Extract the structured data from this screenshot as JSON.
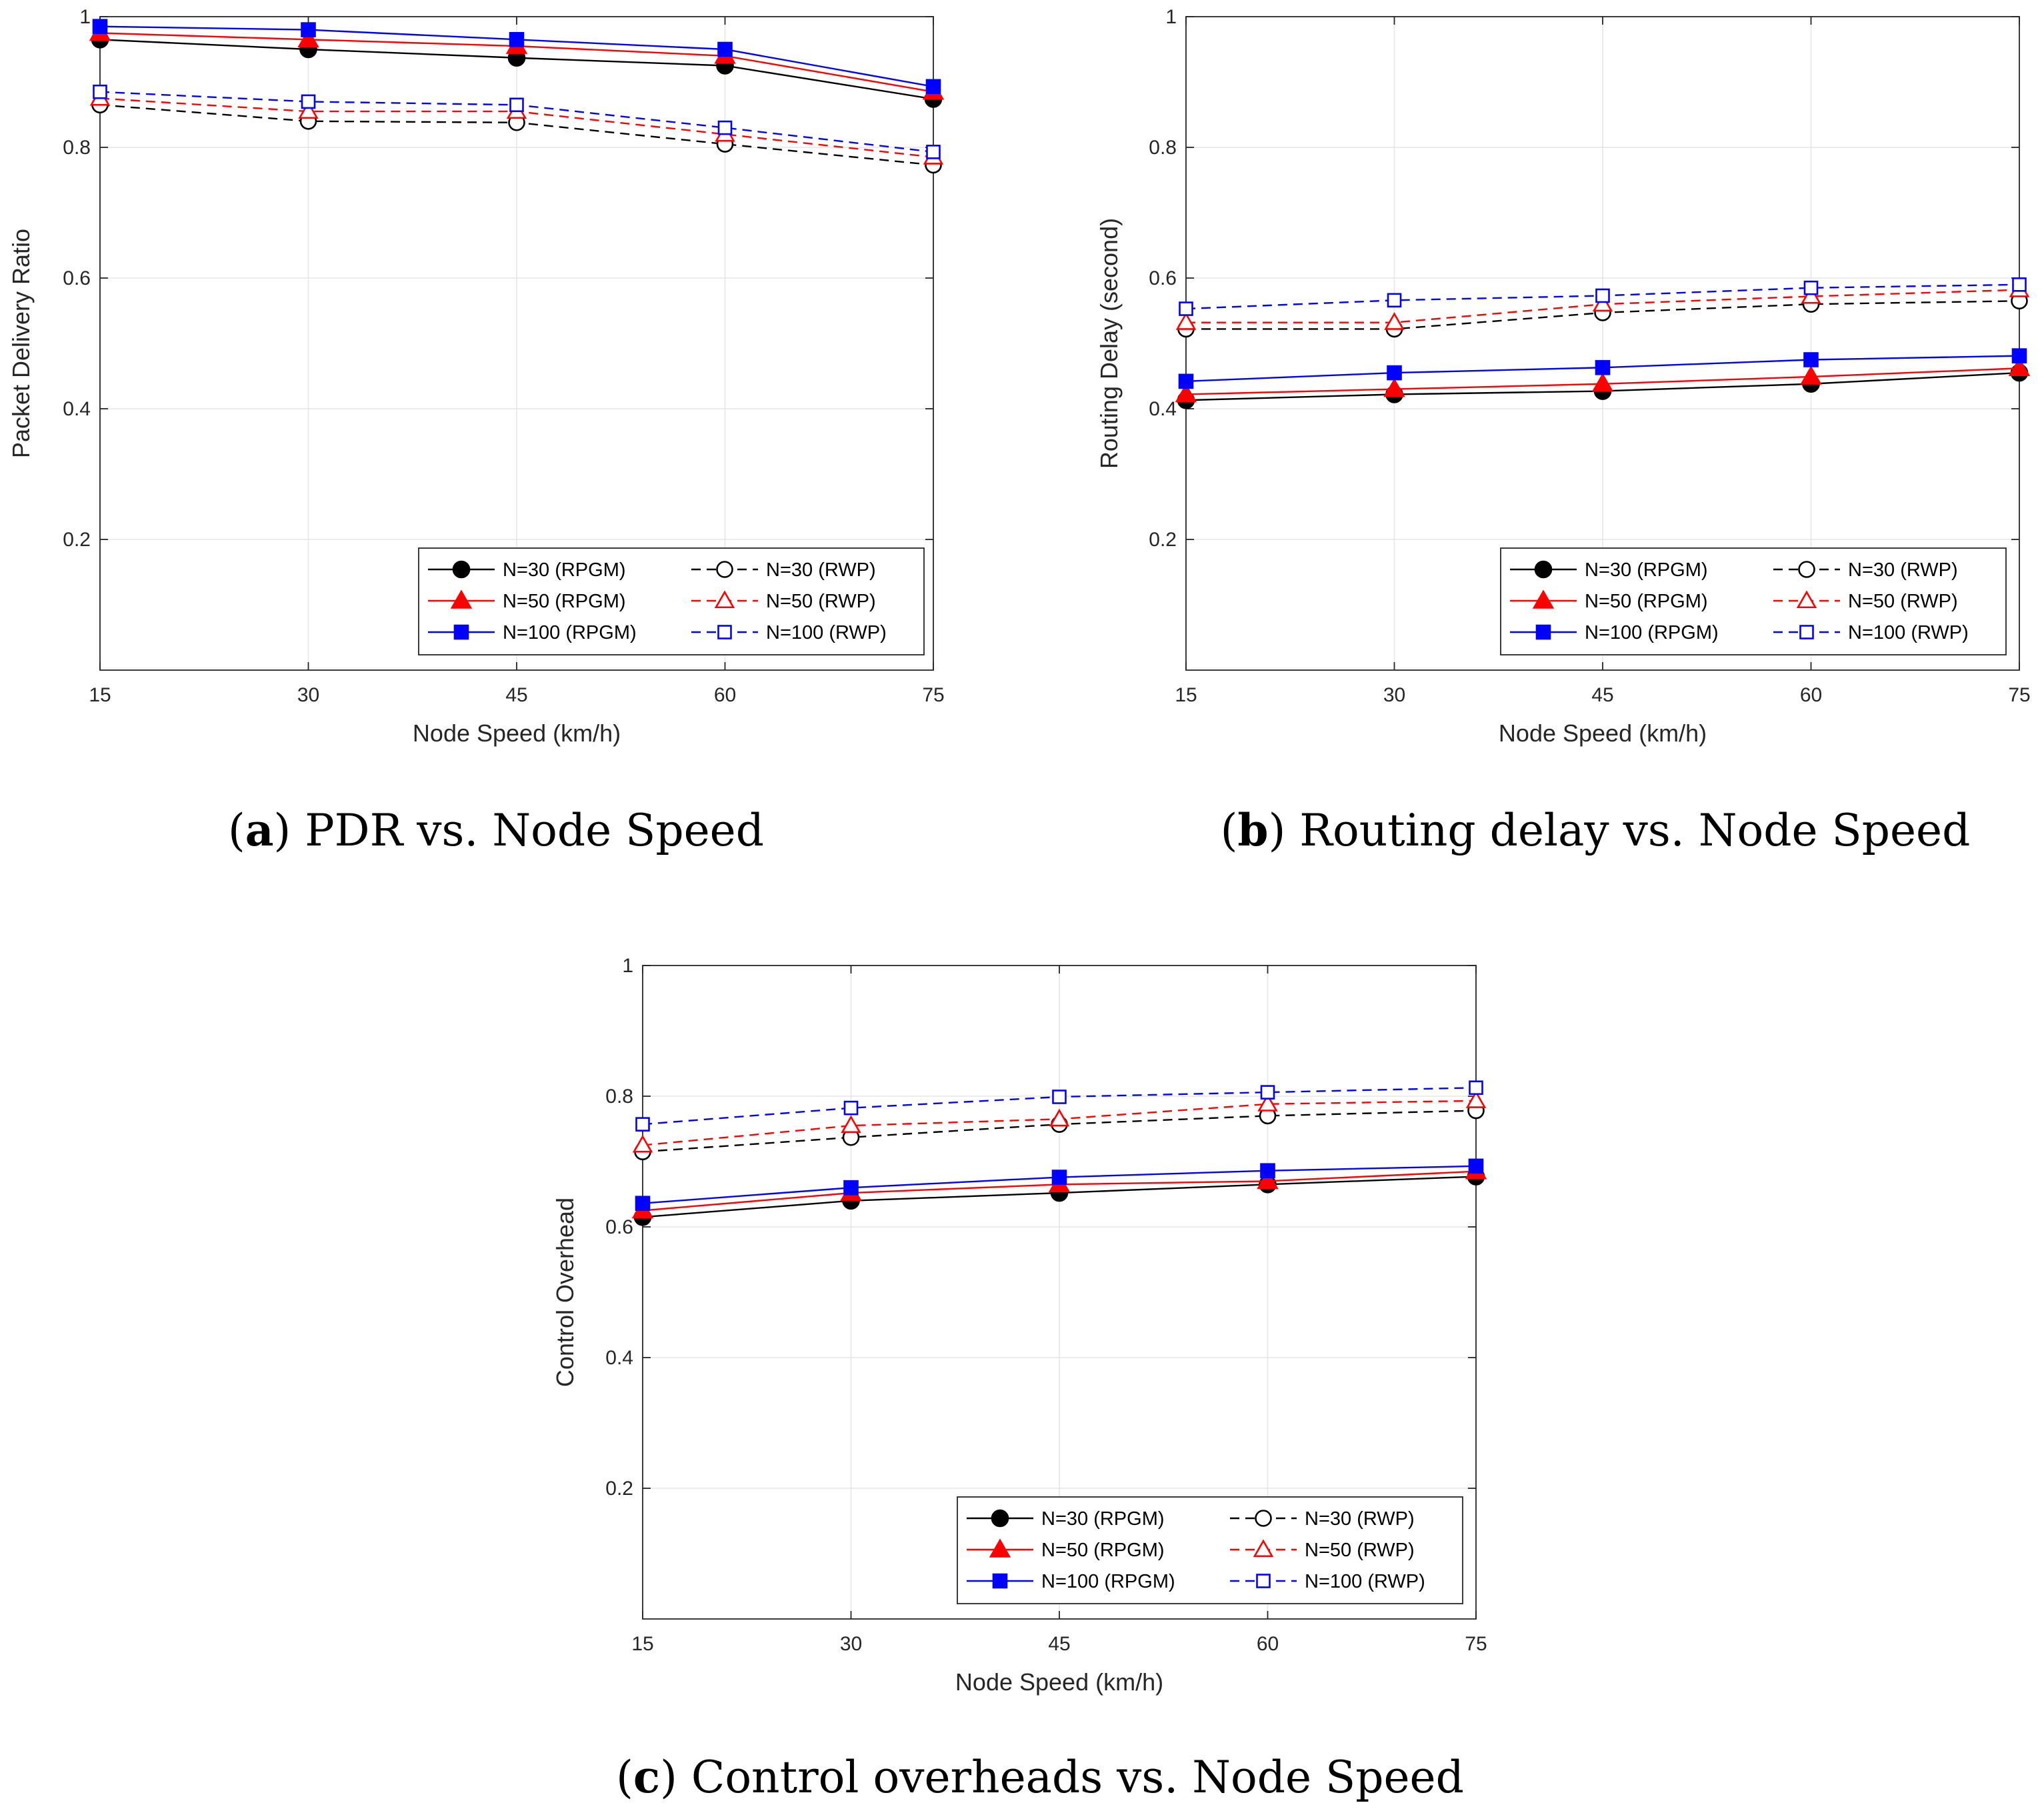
{
  "figure": {
    "colors": {
      "black": "#000000",
      "red": "#ff0000",
      "blue": "#0000ff",
      "grid": "#e6e6e6",
      "axis": "#262626"
    }
  },
  "chart_data": [
    {
      "id": "a",
      "type": "line",
      "caption_tag": "a",
      "caption_text": "PDR vs. Node Speed",
      "xlabel": "Node Speed (km/h)",
      "ylabel": "Packet Delivery Ratio",
      "x": [
        15,
        30,
        45,
        60,
        75
      ],
      "xlim": [
        15,
        75
      ],
      "ylim": [
        0,
        1
      ],
      "xticks": [
        15,
        30,
        45,
        60,
        75
      ],
      "yticks": [
        0.2,
        0.4,
        0.6,
        0.8,
        1
      ],
      "ytick_labels": [
        "0.2",
        "0.4",
        "0.6",
        "0.8",
        "1"
      ],
      "grid": true,
      "legend_position": "bottom-right",
      "series": [
        {
          "name": "N=30 (RPGM)",
          "color": "black",
          "marker": "filled-circle",
          "dashed": false,
          "values": [
            0.965,
            0.95,
            0.937,
            0.925,
            0.874
          ]
        },
        {
          "name": "N=50 (RPGM)",
          "color": "red",
          "marker": "filled-triangle",
          "dashed": false,
          "values": [
            0.975,
            0.965,
            0.955,
            0.94,
            0.885
          ]
        },
        {
          "name": "N=100 (RPGM)",
          "color": "blue",
          "marker": "filled-square",
          "dashed": false,
          "values": [
            0.985,
            0.98,
            0.965,
            0.95,
            0.893
          ]
        },
        {
          "name": "N=30 (RWP)",
          "color": "black",
          "marker": "open-circle",
          "dashed": true,
          "values": [
            0.865,
            0.84,
            0.838,
            0.805,
            0.773
          ]
        },
        {
          "name": "N=50 (RWP)",
          "color": "red",
          "marker": "open-triangle",
          "dashed": true,
          "values": [
            0.875,
            0.855,
            0.855,
            0.82,
            0.785
          ]
        },
        {
          "name": "N=100 (RWP)",
          "color": "blue",
          "marker": "open-square",
          "dashed": true,
          "values": [
            0.885,
            0.87,
            0.865,
            0.83,
            0.793
          ]
        }
      ]
    },
    {
      "id": "b",
      "type": "line",
      "caption_tag": "b",
      "caption_text": "Routing delay vs. Node Speed",
      "xlabel": "Node Speed (km/h)",
      "ylabel": "Routing Delay (second)",
      "x": [
        15,
        30,
        45,
        60,
        75
      ],
      "xlim": [
        15,
        75
      ],
      "ylim": [
        0,
        1
      ],
      "xticks": [
        15,
        30,
        45,
        60,
        75
      ],
      "yticks": [
        0.2,
        0.4,
        0.6,
        0.8,
        1
      ],
      "ytick_labels": [
        "0.2",
        "0.4",
        "0.6",
        "0.8",
        "1"
      ],
      "grid": true,
      "legend_position": "bottom-right",
      "series": [
        {
          "name": "N=30 (RPGM)",
          "color": "black",
          "marker": "filled-circle",
          "dashed": false,
          "values": [
            0.413,
            0.422,
            0.427,
            0.438,
            0.455
          ]
        },
        {
          "name": "N=50 (RPGM)",
          "color": "red",
          "marker": "filled-triangle",
          "dashed": false,
          "values": [
            0.422,
            0.43,
            0.438,
            0.449,
            0.462
          ]
        },
        {
          "name": "N=100 (RPGM)",
          "color": "blue",
          "marker": "filled-square",
          "dashed": false,
          "values": [
            0.442,
            0.455,
            0.463,
            0.475,
            0.481
          ]
        },
        {
          "name": "N=30 (RWP)",
          "color": "black",
          "marker": "open-circle",
          "dashed": true,
          "values": [
            0.522,
            0.522,
            0.547,
            0.56,
            0.565
          ]
        },
        {
          "name": "N=50 (RWP)",
          "color": "red",
          "marker": "open-triangle",
          "dashed": true,
          "values": [
            0.532,
            0.532,
            0.56,
            0.572,
            0.582
          ]
        },
        {
          "name": "N=100 (RWP)",
          "color": "blue",
          "marker": "open-square",
          "dashed": true,
          "values": [
            0.553,
            0.566,
            0.573,
            0.585,
            0.59
          ]
        }
      ]
    },
    {
      "id": "c",
      "type": "line",
      "caption_tag": "c",
      "caption_text": "Control overheads vs. Node Speed",
      "xlabel": "Node Speed (km/h)",
      "ylabel": "Control Overhead",
      "x": [
        15,
        30,
        45,
        60,
        75
      ],
      "xlim": [
        15,
        75
      ],
      "ylim": [
        0,
        1
      ],
      "xticks": [
        15,
        30,
        45,
        60,
        75
      ],
      "yticks": [
        0.2,
        0.4,
        0.6,
        0.8,
        1
      ],
      "ytick_labels": [
        "0.2",
        "0.4",
        "0.6",
        "0.8",
        "1"
      ],
      "grid": true,
      "legend_position": "bottom-right",
      "series": [
        {
          "name": "N=30 (RPGM)",
          "color": "black",
          "marker": "filled-circle",
          "dashed": false,
          "values": [
            0.615,
            0.64,
            0.652,
            0.665,
            0.677
          ]
        },
        {
          "name": "N=50 (RPGM)",
          "color": "red",
          "marker": "filled-triangle",
          "dashed": false,
          "values": [
            0.625,
            0.652,
            0.665,
            0.67,
            0.685
          ]
        },
        {
          "name": "N=100 (RPGM)",
          "color": "blue",
          "marker": "filled-square",
          "dashed": false,
          "values": [
            0.636,
            0.66,
            0.676,
            0.686,
            0.693
          ]
        },
        {
          "name": "N=30 (RWP)",
          "color": "black",
          "marker": "open-circle",
          "dashed": true,
          "values": [
            0.715,
            0.737,
            0.757,
            0.77,
            0.778
          ]
        },
        {
          "name": "N=50 (RWP)",
          "color": "red",
          "marker": "open-triangle",
          "dashed": true,
          "values": [
            0.725,
            0.755,
            0.765,
            0.788,
            0.793
          ]
        },
        {
          "name": "N=100 (RWP)",
          "color": "blue",
          "marker": "open-square",
          "dashed": true,
          "values": [
            0.757,
            0.782,
            0.799,
            0.806,
            0.813
          ]
        }
      ]
    }
  ]
}
